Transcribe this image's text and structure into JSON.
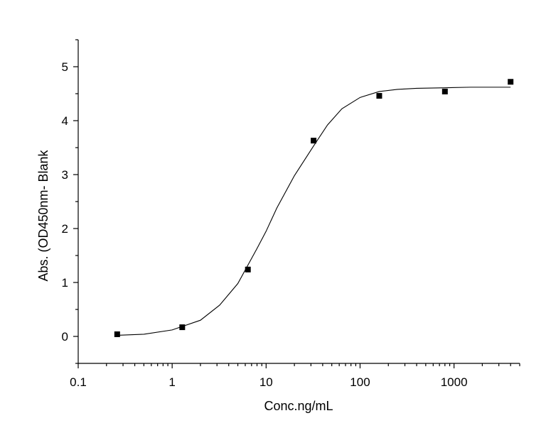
{
  "chart_data": {
    "type": "scatter",
    "xlabel": "Conc.ng/mL",
    "ylabel": "Abs. (OD450nm- Blank",
    "x_scale": "log",
    "xlim": [
      0.1,
      5000
    ],
    "ylim": [
      -0.5,
      5.5
    ],
    "x_ticks": [
      0.1,
      1,
      10,
      100,
      1000
    ],
    "x_tick_labels": [
      "0.1",
      "1",
      "10",
      "100",
      "1000"
    ],
    "y_ticks": [
      0,
      1,
      2,
      3,
      4,
      5
    ],
    "y_tick_labels": [
      "0",
      "1",
      "2",
      "3",
      "4",
      "5"
    ],
    "grid": false,
    "colors": {
      "series": "#000000",
      "axes": "#000000",
      "background": "#ffffff"
    },
    "series": [
      {
        "marker": "square",
        "x": [
          0.26,
          1.28,
          6.4,
          32,
          160,
          800,
          4000
        ],
        "y": [
          0.04,
          0.17,
          1.24,
          3.63,
          4.46,
          4.54,
          4.72
        ]
      }
    ],
    "fit_curve": {
      "type": "sigmoid",
      "x": [
        0.26,
        0.5,
        1,
        2,
        3.2,
        5,
        8,
        10,
        13,
        20,
        32,
        45,
        64,
        100,
        160,
        250,
        400,
        800,
        1500,
        2500,
        4000
      ],
      "y": [
        0.02,
        0.04,
        0.12,
        0.3,
        0.58,
        0.98,
        1.63,
        1.95,
        2.38,
        2.98,
        3.53,
        3.92,
        4.22,
        4.43,
        4.54,
        4.58,
        4.6,
        4.61,
        4.62,
        4.62,
        4.62
      ]
    }
  }
}
